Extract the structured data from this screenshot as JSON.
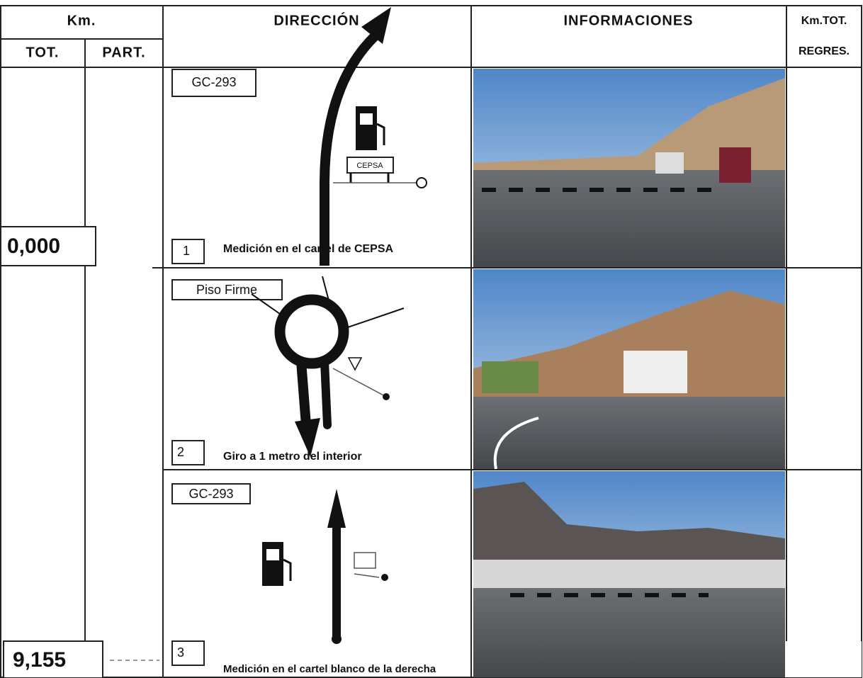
{
  "header": {
    "km": "Km.",
    "tot": "TOT.",
    "part": "PART.",
    "direction": "DIRECCIÓN",
    "info": "INFORMACIONES",
    "km_tot": "Km.TOT.",
    "regres": "REGRES."
  },
  "rows": [
    {
      "km_tot": "0,000",
      "road": "GC-293",
      "sign": "CEPSA",
      "number": "1",
      "caption": "Medición en el cartel de CEPSA"
    },
    {
      "road": "Piso Firme",
      "number": "2",
      "caption": "Giro a 1 metro del interior"
    },
    {
      "km_tot": "9,155",
      "road": "GC-293",
      "number": "3",
      "caption": "Medición  en el cartel blanco de la derecha"
    }
  ]
}
